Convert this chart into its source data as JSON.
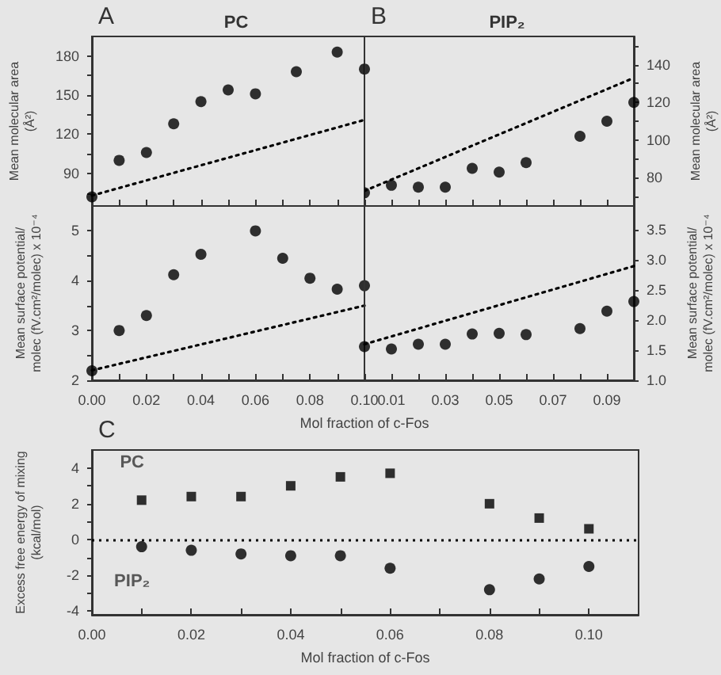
{
  "chart_data": [
    {
      "type": "scatter",
      "title": "PC",
      "annotations": [
        "A"
      ],
      "ylabel": "Mean molecular area\n(Å²)",
      "xlim": [
        0,
        0.1
      ],
      "xticks": [
        {
          "value": 0,
          "label": null
        },
        {
          "value": 0.01,
          "label": null
        },
        {
          "value": 0.02,
          "label": null
        },
        {
          "value": 0.03,
          "label": null
        },
        {
          "value": 0.04,
          "label": null
        },
        {
          "value": 0.05,
          "label": null
        },
        {
          "value": 0.06,
          "label": null
        },
        {
          "value": 0.07,
          "label": null
        },
        {
          "value": 0.08,
          "label": null
        },
        {
          "value": 0.09,
          "label": null
        },
        {
          "value": 0.1,
          "label": null
        }
      ],
      "ylim": [
        65,
        195
      ],
      "yticks": [
        {
          "value": 75,
          "label": null
        },
        90,
        {
          "value": 105,
          "label": null
        },
        120,
        {
          "value": 135,
          "label": null
        },
        150,
        {
          "value": 165,
          "label": null
        },
        180
      ],
      "tick_labels": "y",
      "grid": false,
      "legend": false,
      "marker": "circle",
      "series": [
        {
          "color": "#000000",
          "x": [
            0,
            0.01,
            0.02,
            0.03,
            0.04,
            0.05,
            0.06,
            0.075,
            0.09,
            0.1
          ],
          "values": [
            72,
            100,
            106,
            128,
            145,
            154,
            151,
            168,
            183,
            170
          ]
        },
        {
          "type": "line",
          "marker": "none",
          "line_style": "dotted",
          "color": "#000000",
          "x": [
            0,
            0.1
          ],
          "values": [
            73,
            131
          ]
        }
      ]
    },
    {
      "type": "scatter",
      "title": "PIP₂",
      "annotations": [
        "B"
      ],
      "y2label": "Mean molecular area\n(Å²)",
      "xlim": [
        0,
        0.1
      ],
      "xticks": [
        {
          "value": 0,
          "label": null
        },
        {
          "value": 0.01,
          "label": null
        },
        {
          "value": 0.02,
          "label": null
        },
        {
          "value": 0.03,
          "label": null
        },
        {
          "value": 0.04,
          "label": null
        },
        {
          "value": 0.05,
          "label": null
        },
        {
          "value": 0.06,
          "label": null
        },
        {
          "value": 0.07,
          "label": null
        },
        {
          "value": 0.08,
          "label": null
        },
        {
          "value": 0.09,
          "label": null
        },
        {
          "value": 0.1,
          "label": null
        }
      ],
      "y2lim": [
        65,
        155
      ],
      "y2ticks": [
        {
          "value": 70,
          "label": null
        },
        80,
        {
          "value": 90,
          "label": null
        },
        100,
        {
          "value": 110,
          "label": null
        },
        120,
        {
          "value": 130,
          "label": null
        },
        140,
        {
          "value": 150,
          "label": null
        }
      ],
      "tick_labels": "y",
      "grid": false,
      "legend": false,
      "marker": "circle",
      "series": [
        {
          "axis": "y2",
          "color": "#000000",
          "x": [
            0,
            0.01,
            0.02,
            0.03,
            0.04,
            0.05,
            0.06,
            0.08,
            0.09,
            0.1
          ],
          "values": [
            72,
            76,
            75,
            75,
            85,
            83,
            88,
            102,
            110,
            120
          ]
        },
        {
          "axis": "y2",
          "type": "line",
          "marker": "none",
          "line_style": "dotted",
          "color": "#000000",
          "x": [
            0,
            0.1
          ],
          "values": [
            73,
            133
          ]
        }
      ]
    },
    {
      "type": "scatter",
      "ylabel": "Mean surface potential/\nmolec (fV.cm²/molec) x 10⁻⁴",
      "xlim": [
        0,
        0.1
      ],
      "xticks": [
        {
          "value": 0,
          "label": "0.00"
        },
        {
          "value": 0.01,
          "label": null
        },
        {
          "value": 0.02,
          "label": "0.02"
        },
        {
          "value": 0.03,
          "label": null
        },
        {
          "value": 0.04,
          "label": "0.04"
        },
        {
          "value": 0.05,
          "label": null
        },
        {
          "value": 0.06,
          "label": "0.06"
        },
        {
          "value": 0.07,
          "label": null
        },
        {
          "value": 0.08,
          "label": "0.08"
        },
        {
          "value": 0.09,
          "label": null
        },
        {
          "value": 0.1,
          "label": "0.10"
        }
      ],
      "ylim": [
        2,
        5.5
      ],
      "yticks": [
        2,
        {
          "value": 2.5,
          "label": null
        },
        3,
        {
          "value": 3.5,
          "label": null
        },
        4,
        {
          "value": 4.5,
          "label": null
        },
        5
      ],
      "grid": false,
      "legend": false,
      "marker": "circle",
      "series": [
        {
          "color": "#000000",
          "x": [
            0,
            0.01,
            0.02,
            0.03,
            0.04,
            0.06,
            0.07,
            0.08,
            0.09,
            0.1
          ],
          "values": [
            2.19,
            3.0,
            3.3,
            4.12,
            4.53,
            5.0,
            4.45,
            4.05,
            3.83,
            3.9
          ]
        },
        {
          "type": "line",
          "marker": "none",
          "line_style": "dotted",
          "color": "#000000",
          "x": [
            0,
            0.1
          ],
          "values": [
            2.2,
            3.5
          ]
        }
      ]
    },
    {
      "type": "scatter",
      "xlabel": "Mol fraction of c-Fos",
      "y2label": "Mean surface potential/\nmolec (fV.cm²/molec) x 10⁻⁴",
      "xlim": [
        0,
        0.1
      ],
      "xticks": [
        {
          "value": 0,
          "label": null
        },
        {
          "value": 0.01,
          "label": "0.01"
        },
        {
          "value": 0.02,
          "label": null
        },
        {
          "value": 0.03,
          "label": "0.03"
        },
        {
          "value": 0.04,
          "label": null
        },
        {
          "value": 0.05,
          "label": "0.05"
        },
        {
          "value": 0.06,
          "label": null
        },
        {
          "value": 0.07,
          "label": "0.07"
        },
        {
          "value": 0.08,
          "label": null
        },
        {
          "value": 0.09,
          "label": "0.09"
        },
        {
          "value": 0.1,
          "label": null
        }
      ],
      "y2lim": [
        1,
        3.9
      ],
      "y2ticks": [
        {
          "value": 1,
          "label": "1.0"
        },
        1.5,
        {
          "value": 2,
          "label": "2.0"
        },
        2.5,
        {
          "value": 3,
          "label": "3.0"
        },
        3.5
      ],
      "grid": false,
      "legend": false,
      "marker": "circle",
      "series": [
        {
          "axis": "y2",
          "color": "#000000",
          "x": [
            0,
            0.01,
            0.02,
            0.03,
            0.04,
            0.05,
            0.06,
            0.08,
            0.09,
            0.1
          ],
          "values": [
            1.56,
            1.52,
            1.6,
            1.6,
            1.77,
            1.78,
            1.76,
            1.86,
            2.15,
            2.31
          ]
        },
        {
          "axis": "y2",
          "type": "line",
          "marker": "none",
          "line_style": "dotted",
          "color": "#000000",
          "x": [
            0,
            0.1
          ],
          "values": [
            1.6,
            2.9
          ]
        }
      ]
    },
    {
      "type": "scatter",
      "annotations": [
        "C"
      ],
      "xlabel": "Mol fraction of c-Fos",
      "ylabel": "Excess free energy of mixing\n(kcal/mol)",
      "xlim": [
        0,
        0.11
      ],
      "xticks": [
        {
          "value": 0,
          "label": "0.00"
        },
        {
          "value": 0.01,
          "label": null
        },
        {
          "value": 0.02,
          "label": "0.02"
        },
        {
          "value": 0.03,
          "label": null
        },
        {
          "value": 0.04,
          "label": "0.04"
        },
        {
          "value": 0.05,
          "label": null
        },
        {
          "value": 0.06,
          "label": "0.06"
        },
        {
          "value": 0.07,
          "label": null
        },
        {
          "value": 0.08,
          "label": "0.08"
        },
        {
          "value": 0.09,
          "label": null
        },
        {
          "value": 0.1,
          "label": "0.10"
        }
      ],
      "ylim": [
        -4.2,
        5
      ],
      "yticks": [
        -4,
        {
          "value": -3,
          "label": null
        },
        -2,
        {
          "value": -1,
          "label": null
        },
        0,
        {
          "value": 1,
          "label": null
        },
        2,
        {
          "value": 3,
          "label": null
        },
        4
      ],
      "grid": false,
      "legend": false,
      "ref_lines": [
        {
          "axis": "y",
          "value": 0,
          "line_style": "dotted",
          "color": "#000000"
        }
      ],
      "series": [
        {
          "name": "PC",
          "marker": "square",
          "color": "#000000",
          "x": [
            0.01,
            0.02,
            0.03,
            0.04,
            0.05,
            0.06,
            0.08,
            0.09,
            0.1
          ],
          "values": [
            2.2,
            2.4,
            2.4,
            3.0,
            3.5,
            3.7,
            2.0,
            1.2,
            0.6
          ]
        },
        {
          "name": "PIP₂",
          "marker": "circle",
          "color": "#000000",
          "x": [
            0.01,
            0.02,
            0.03,
            0.04,
            0.05,
            0.06,
            0.08,
            0.09,
            0.1
          ],
          "values": [
            -0.4,
            -0.6,
            -0.8,
            -0.9,
            -0.9,
            -1.6,
            -2.8,
            -2.2,
            -1.5
          ]
        }
      ]
    }
  ]
}
